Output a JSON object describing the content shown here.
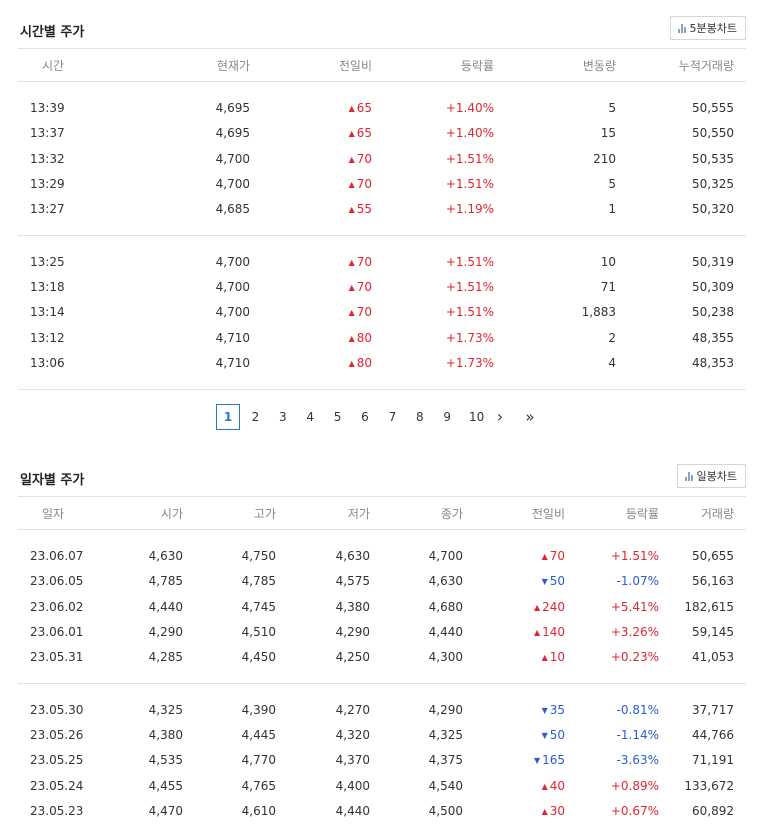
{
  "time_section": {
    "title": "시간별 주가",
    "chart_button": "5분봉차트",
    "headers": [
      "시간",
      "현재가",
      "전일비",
      "등락률",
      "변동량",
      "누적거래량"
    ],
    "groups": [
      [
        [
          "13:39",
          "4,695",
          "65",
          "+1.40%",
          "5",
          "50,555"
        ],
        [
          "13:37",
          "4,695",
          "65",
          "+1.40%",
          "15",
          "50,550"
        ],
        [
          "13:32",
          "4,700",
          "70",
          "+1.51%",
          "210",
          "50,535"
        ],
        [
          "13:29",
          "4,700",
          "70",
          "+1.51%",
          "5",
          "50,325"
        ],
        [
          "13:27",
          "4,685",
          "55",
          "+1.19%",
          "1",
          "50,320"
        ]
      ],
      [
        [
          "13:25",
          "4,700",
          "70",
          "+1.51%",
          "10",
          "50,319"
        ],
        [
          "13:18",
          "4,700",
          "70",
          "+1.51%",
          "71",
          "50,309"
        ],
        [
          "13:14",
          "4,700",
          "70",
          "+1.51%",
          "1,883",
          "50,238"
        ],
        [
          "13:12",
          "4,710",
          "80",
          "+1.73%",
          "2",
          "48,355"
        ],
        [
          "13:06",
          "4,710",
          "80",
          "+1.73%",
          "4",
          "48,353"
        ]
      ]
    ]
  },
  "pagination": {
    "pages": [
      "1",
      "2",
      "3",
      "4",
      "5",
      "6",
      "7",
      "8",
      "9",
      "10"
    ],
    "active": "1",
    "next": "›",
    "last": "»"
  },
  "daily_section": {
    "title": "일자별 주가",
    "chart_button": "일봉차트",
    "headers": [
      "일자",
      "시가",
      "고가",
      "저가",
      "종가",
      "전일비",
      "등락률",
      "거래량"
    ],
    "groups": [
      [
        [
          "23.06.07",
          "4,630",
          "4,750",
          "4,630",
          "4,700",
          "up",
          "70",
          "+1.51%",
          "50,655"
        ],
        [
          "23.06.05",
          "4,785",
          "4,785",
          "4,575",
          "4,630",
          "down",
          "50",
          "-1.07%",
          "56,163"
        ],
        [
          "23.06.02",
          "4,440",
          "4,745",
          "4,380",
          "4,680",
          "up",
          "240",
          "+5.41%",
          "182,615"
        ],
        [
          "23.06.01",
          "4,290",
          "4,510",
          "4,290",
          "4,440",
          "up",
          "140",
          "+3.26%",
          "59,145"
        ],
        [
          "23.05.31",
          "4,285",
          "4,450",
          "4,250",
          "4,300",
          "up",
          "10",
          "+0.23%",
          "41,053"
        ]
      ],
      [
        [
          "23.05.30",
          "4,325",
          "4,390",
          "4,270",
          "4,290",
          "down",
          "35",
          "-0.81%",
          "37,717"
        ],
        [
          "23.05.26",
          "4,380",
          "4,445",
          "4,320",
          "4,325",
          "down",
          "50",
          "-1.14%",
          "44,766"
        ],
        [
          "23.05.25",
          "4,535",
          "4,770",
          "4,370",
          "4,375",
          "down",
          "165",
          "-3.63%",
          "71,191"
        ],
        [
          "23.05.24",
          "4,455",
          "4,765",
          "4,400",
          "4,540",
          "up",
          "40",
          "+0.89%",
          "133,672"
        ],
        [
          "23.05.23",
          "4,470",
          "4,610",
          "4,440",
          "4,500",
          "up",
          "30",
          "+0.67%",
          "60,892"
        ]
      ]
    ]
  },
  "icons": {
    "chart": "bar-chart-icon",
    "up": "triangle-up-icon",
    "down": "triangle-down-icon"
  },
  "colors": {
    "up": "#e0262e",
    "down": "#2a5dd0",
    "active_page": "#2e77c4"
  }
}
